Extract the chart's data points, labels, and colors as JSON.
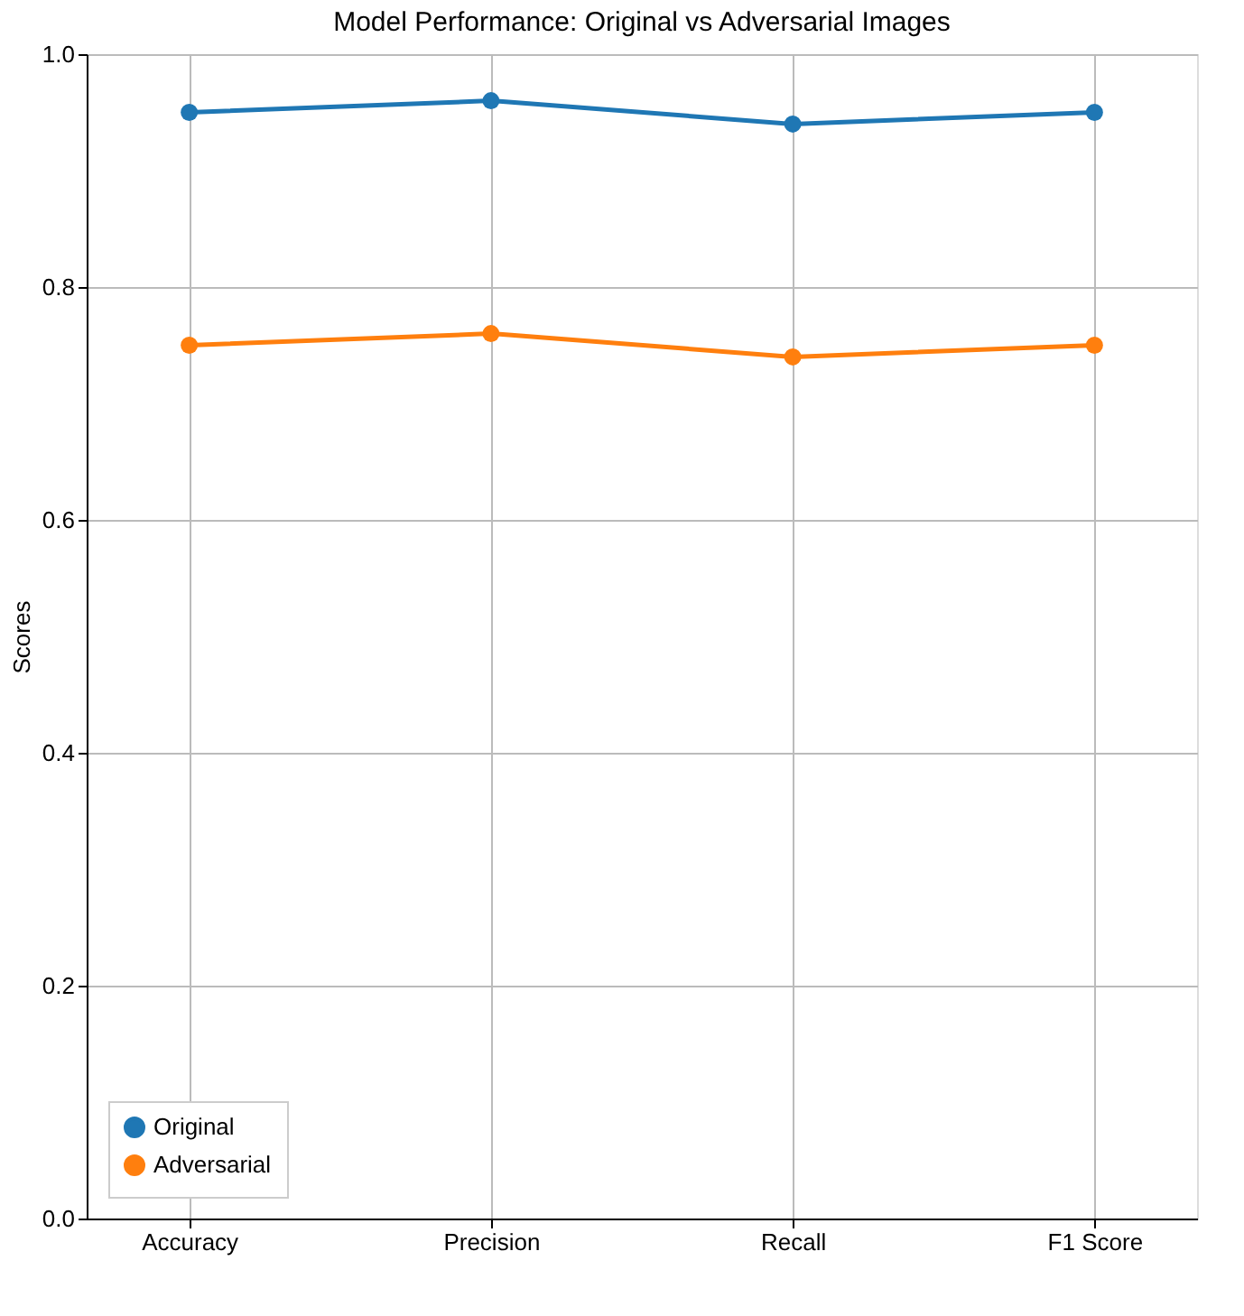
{
  "chart_data": {
    "type": "line",
    "title": "Model Performance: Original vs Adversarial Images",
    "ylabel": "Scores",
    "categories": [
      "Accuracy",
      "Precision",
      "Recall",
      "F1 Score"
    ],
    "series": [
      {
        "name": "Original",
        "color": "#1f77b4",
        "values": [
          0.95,
          0.96,
          0.94,
          0.95
        ]
      },
      {
        "name": "Adversarial",
        "color": "#ff7f0e",
        "values": [
          0.75,
          0.76,
          0.74,
          0.75
        ]
      }
    ],
    "ylim": [
      0.0,
      1.0
    ],
    "yticks": [
      {
        "value": 0,
        "label": "0.0"
      },
      {
        "value": 0.2,
        "label": "0.2"
      },
      {
        "value": 0.4,
        "label": "0.4"
      },
      {
        "value": 0.6,
        "label": "0.6"
      },
      {
        "value": 0.8,
        "label": "0.8"
      },
      {
        "value": 1.0,
        "label": "1.0"
      }
    ],
    "grid": true,
    "legend": "bottom left",
    "marker": "circle",
    "line_style": "solid"
  }
}
